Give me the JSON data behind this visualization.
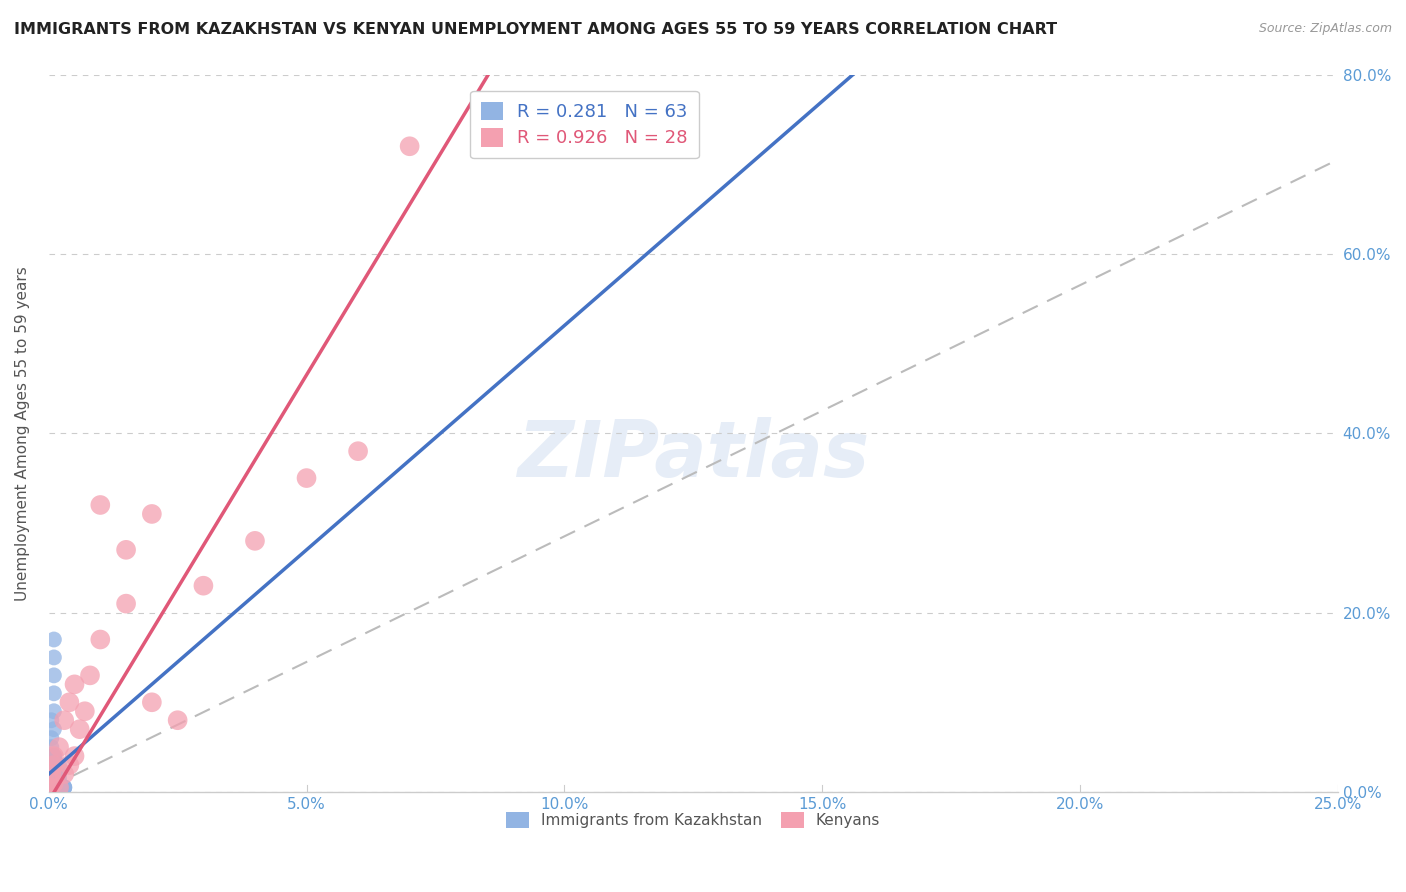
{
  "title": "IMMIGRANTS FROM KAZAKHSTAN VS KENYAN UNEMPLOYMENT AMONG AGES 55 TO 59 YEARS CORRELATION CHART",
  "source": "Source: ZipAtlas.com",
  "ylabel": "Unemployment Among Ages 55 to 59 years",
  "xlim": [
    0.0,
    0.25
  ],
  "ylim": [
    0.0,
    0.8
  ],
  "xticks": [
    0.0,
    0.05,
    0.1,
    0.15,
    0.2,
    0.25
  ],
  "xtick_labels": [
    "0.0%",
    "5.0%",
    "10.0%",
    "15.0%",
    "20.0%",
    "25.0%"
  ],
  "yticks": [
    0.0,
    0.2,
    0.4,
    0.6,
    0.8
  ],
  "ytick_labels": [
    "0.0%",
    "20.0%",
    "40.0%",
    "60.0%",
    "80.0%"
  ],
  "R_kaz": 0.281,
  "N_kaz": 63,
  "R_ken": 0.926,
  "N_ken": 28,
  "color_kaz": "#92B4E3",
  "color_ken": "#F4A0B0",
  "trendline_kaz": "#4472C4",
  "trendline_ken": "#E05878",
  "trendline_overall": "#BBBBBB",
  "background_color": "#FFFFFF",
  "title_color": "#222222",
  "axis_color": "#5B9BD5",
  "legend_label_kaz": "Immigrants from Kazakhstan",
  "legend_label_ken": "Kenyans",
  "watermark": "ZIPatlas",
  "kaz_x": [
    0.0005,
    0.001,
    0.0005,
    0.001,
    0.002,
    0.001,
    0.0005,
    0.002,
    0.001,
    0.0003,
    0.001,
    0.002,
    0.001,
    0.0005,
    0.003,
    0.002,
    0.001,
    0.0005,
    0.001,
    0.002,
    0.001,
    0.0005,
    0.002,
    0.001,
    0.0003,
    0.002,
    0.001,
    0.001,
    0.0005,
    0.002,
    0.001,
    0.002,
    0.0005,
    0.001,
    0.002,
    0.0003,
    0.001,
    0.001,
    0.0005,
    0.002,
    0.001,
    0.0005,
    0.002,
    0.001,
    0.003,
    0.001,
    0.001,
    0.002,
    0.0005,
    0.003,
    0.001,
    0.0005,
    0.002,
    0.001,
    0.0003,
    0.002,
    0.001,
    0.002,
    0.0005,
    0.001,
    0.003,
    0.001,
    0.002
  ],
  "kaz_y": [
    0.005,
    0.01,
    0.005,
    0.02,
    0.005,
    0.03,
    0.005,
    0.015,
    0.005,
    0.005,
    0.04,
    0.005,
    0.02,
    0.005,
    0.005,
    0.01,
    0.005,
    0.05,
    0.03,
    0.005,
    0.02,
    0.06,
    0.005,
    0.04,
    0.005,
    0.005,
    0.01,
    0.07,
    0.005,
    0.02,
    0.005,
    0.03,
    0.08,
    0.005,
    0.005,
    0.005,
    0.02,
    0.09,
    0.005,
    0.005,
    0.03,
    0.005,
    0.005,
    0.01,
    0.005,
    0.04,
    0.11,
    0.005,
    0.005,
    0.005,
    0.13,
    0.005,
    0.005,
    0.02,
    0.005,
    0.005,
    0.15,
    0.005,
    0.005,
    0.17,
    0.005,
    0.005,
    0.005
  ],
  "ken_x": [
    0.0003,
    0.001,
    0.0005,
    0.002,
    0.001,
    0.003,
    0.001,
    0.004,
    0.002,
    0.005,
    0.003,
    0.006,
    0.004,
    0.007,
    0.005,
    0.008,
    0.01,
    0.015,
    0.02,
    0.025,
    0.03,
    0.04,
    0.02,
    0.05,
    0.015,
    0.06,
    0.01,
    0.07
  ],
  "ken_y": [
    0.005,
    0.01,
    0.02,
    0.005,
    0.03,
    0.02,
    0.04,
    0.03,
    0.05,
    0.04,
    0.08,
    0.07,
    0.1,
    0.09,
    0.12,
    0.13,
    0.17,
    0.21,
    0.1,
    0.08,
    0.23,
    0.28,
    0.31,
    0.35,
    0.27,
    0.38,
    0.32,
    0.72
  ],
  "trendline_kaz_slope": 5.0,
  "trendline_kaz_intercept": 0.02,
  "trendline_ken_slope": 9.5,
  "trendline_ken_intercept": -0.01,
  "trendline_overall_slope": 2.8,
  "trendline_overall_intercept": 0.005
}
